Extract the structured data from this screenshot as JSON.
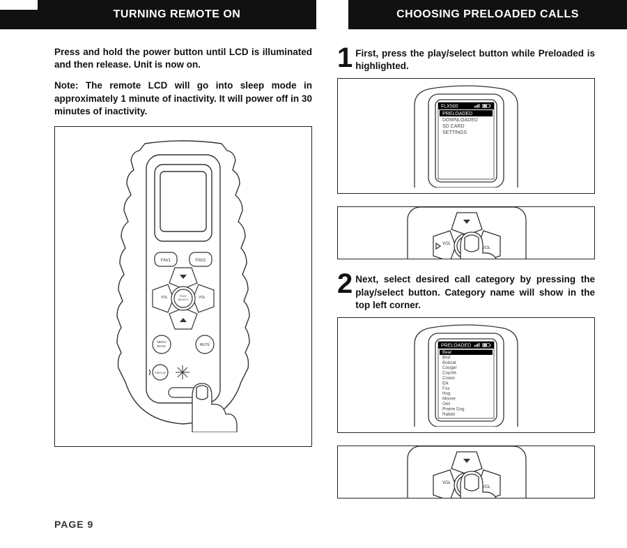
{
  "headers": {
    "left": "TURNING REMOTE ON",
    "right": "CHOOSING PRELOADED CALLS"
  },
  "left_col": {
    "p1": "Press and hold the power button until LCD is illuminated and then release. Unit is now on.",
    "p2": "Note: The remote LCD will go into sleep mode in approximately 1 minute of inactivity. It will power off in 30 minutes of inactivity."
  },
  "right_col": {
    "step1_num": "1",
    "step1": "First, press the play/select button while Preloaded is highlighted.",
    "step2_num": "2",
    "step2": "Next, select desired call category by pressing the play/select button. Category name will show in the top left corner."
  },
  "screen1": {
    "title": "FLX500",
    "battery": "11",
    "menu": [
      "PRELOADED",
      "DOWNLOADED",
      "SD CARD",
      "SETTINGS"
    ],
    "highlight_index": 0
  },
  "screen2": {
    "title": "PRELOADED",
    "battery": "11",
    "menu": [
      "Bear",
      "Bird",
      "Bobcat",
      "Cougar",
      "Coyote",
      "Crows",
      "Elk",
      "Fox",
      "Hog",
      "Mouse",
      "Owl",
      "Prairie Dog",
      "Rabbit"
    ],
    "highlight_index": 0
  },
  "remote_labels": {
    "fav1": "FAV1",
    "fav2": "FAV2",
    "play": "PLAY\nSELECT",
    "menu": "MENU\nBACK",
    "mute": "MUTE",
    "display": "DISPLAY",
    "vol": "VOL"
  },
  "page_label": "PAGE 9",
  "colors": {
    "ink": "#111111",
    "stroke": "#333333",
    "lcd_bg": "#ffffff"
  }
}
